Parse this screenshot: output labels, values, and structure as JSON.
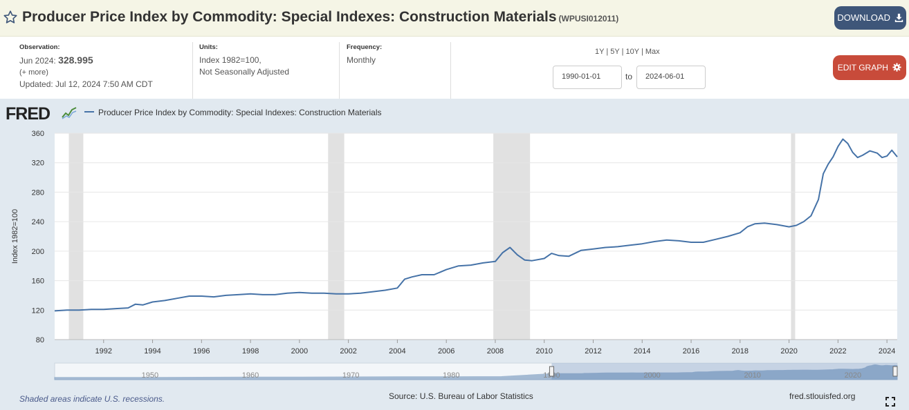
{
  "header": {
    "title": "Producer Price Index by Commodity: Special Indexes: Construction Materials",
    "series_id": "(WPUSI012011)",
    "download_label": "DOWNLOAD"
  },
  "meta": {
    "observation_label": "Observation:",
    "observation_date": "Jun 2024:",
    "observation_value": "328.995",
    "more_label": "(+ more)",
    "updated": "Updated: Jul 12, 2024 7:50 AM CDT",
    "units_label": "Units:",
    "units_line1": "Index 1982=100,",
    "units_line2": "Not Seasonally Adjusted",
    "frequency_label": "Frequency:",
    "frequency_value": "Monthly",
    "range_1y": "1Y",
    "range_5y": "5Y",
    "range_10y": "10Y",
    "range_max": "Max",
    "range_sep": "|",
    "start_date": "1990-01-01",
    "to_label": "to",
    "end_date": "2024-06-01",
    "edit_label": "EDIT GRAPH"
  },
  "graph": {
    "logo_text": "FRED",
    "legend": "Producer Price Index by Commodity: Special Indexes: Construction Materials",
    "footer_recession": "Shaded areas indicate U.S. recessions.",
    "footer_source": "Source: U.S. Bureau of Labor Statistics",
    "footer_site": "fred.stlouisfed.org",
    "line_color": "#4572a7",
    "recession_color": "#e1e1e1"
  },
  "chart_data": {
    "type": "line",
    "ylabel": "Index 1982=100",
    "ylim": [
      80,
      360
    ],
    "yticks": [
      80,
      120,
      160,
      200,
      240,
      280,
      320,
      360
    ],
    "xlim": [
      1990.0,
      2024.42
    ],
    "xticks": [
      1992,
      1994,
      1996,
      1998,
      2000,
      2002,
      2004,
      2006,
      2008,
      2010,
      2012,
      2014,
      2016,
      2018,
      2020,
      2022,
      2024
    ],
    "recessions": [
      [
        1990.58,
        1991.17
      ],
      [
        2001.17,
        2001.83
      ],
      [
        2007.92,
        2009.42
      ],
      [
        2020.08,
        2020.25
      ]
    ],
    "series": [
      {
        "name": "Producer Price Index by Commodity: Special Indexes: Construction Materials",
        "x": [
          1990.0,
          1990.5,
          1991.0,
          1991.5,
          1992.0,
          1992.5,
          1993.0,
          1993.3,
          1993.6,
          1994.0,
          1994.5,
          1995.0,
          1995.5,
          1996.0,
          1996.5,
          1997.0,
          1997.5,
          1998.0,
          1998.5,
          1999.0,
          1999.5,
          2000.0,
          2000.5,
          2001.0,
          2001.5,
          2002.0,
          2002.5,
          2003.0,
          2003.5,
          2004.0,
          2004.3,
          2004.6,
          2005.0,
          2005.5,
          2006.0,
          2006.5,
          2007.0,
          2007.5,
          2008.0,
          2008.3,
          2008.6,
          2008.9,
          2009.2,
          2009.5,
          2010.0,
          2010.3,
          2010.6,
          2011.0,
          2011.5,
          2012.0,
          2012.5,
          2013.0,
          2013.5,
          2014.0,
          2014.5,
          2015.0,
          2015.5,
          2016.0,
          2016.5,
          2017.0,
          2017.5,
          2018.0,
          2018.3,
          2018.6,
          2019.0,
          2019.5,
          2020.0,
          2020.3,
          2020.6,
          2020.9,
          2021.2,
          2021.4,
          2021.6,
          2021.8,
          2022.0,
          2022.2,
          2022.4,
          2022.6,
          2022.8,
          2023.0,
          2023.3,
          2023.6,
          2023.8,
          2024.0,
          2024.2,
          2024.42
        ],
        "y": [
          119,
          120,
          120,
          121,
          121,
          122,
          123,
          128,
          127,
          131,
          133,
          136,
          139,
          139,
          138,
          140,
          141,
          142,
          141,
          141,
          143,
          144,
          143,
          143,
          142,
          142,
          143,
          145,
          147,
          150,
          162,
          165,
          168,
          168,
          175,
          180,
          181,
          184,
          186,
          198,
          205,
          195,
          188,
          187,
          190,
          197,
          194,
          193,
          201,
          203,
          205,
          206,
          208,
          210,
          213,
          215,
          214,
          212,
          212,
          216,
          220,
          225,
          233,
          237,
          238,
          236,
          233,
          235,
          240,
          248,
          270,
          305,
          318,
          328,
          342,
          352,
          346,
          334,
          327,
          330,
          336,
          333,
          327,
          329,
          337,
          328
        ]
      }
    ]
  },
  "navigator": {
    "labels": [
      "1950",
      "1960",
      "1970",
      "1980",
      "1990",
      "2000",
      "2010",
      "2020"
    ]
  }
}
